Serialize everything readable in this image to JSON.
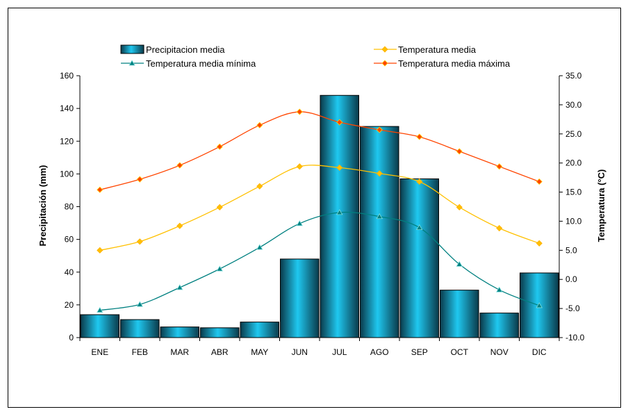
{
  "chart_data": {
    "type": "bar+line",
    "categories": [
      "ENE",
      "FEB",
      "MAR",
      "ABR",
      "MAY",
      "JUN",
      "JUL",
      "AGO",
      "SEP",
      "OCT",
      "NOV",
      "DIC"
    ],
    "bar_series": {
      "name": "Precipitacion media",
      "axis": "left",
      "values": [
        14,
        11,
        6.5,
        6,
        9.5,
        48,
        148,
        129,
        97,
        29,
        15,
        39.5
      ]
    },
    "line_series": [
      {
        "name": "Temperatura media",
        "axis": "right",
        "color": "#ffc000",
        "marker": "diamond",
        "values": [
          5.0,
          6.5,
          9.2,
          12.4,
          16.0,
          19.4,
          19.2,
          18.2,
          16.8,
          12.4,
          8.8,
          6.2
        ]
      },
      {
        "name": "Temperatura media mínima",
        "axis": "right",
        "color": "#008080",
        "marker": "triangle",
        "values": [
          -5.3,
          -4.3,
          -1.4,
          1.8,
          5.5,
          9.6,
          11.5,
          10.8,
          8.9,
          2.6,
          -1.8,
          -4.5
        ]
      },
      {
        "name": "Temperatura media máxima",
        "axis": "right",
        "color": "#ff4500",
        "marker": "diamond",
        "values": [
          15.4,
          17.2,
          19.6,
          22.8,
          26.5,
          28.8,
          27.0,
          25.7,
          24.5,
          22.0,
          19.4,
          16.8
        ]
      }
    ],
    "y_left": {
      "label": "Precipitación (mm)",
      "range": [
        0,
        160
      ],
      "ticks": [
        "0",
        "20",
        "40",
        "60",
        "80",
        "100",
        "120",
        "140",
        "160"
      ]
    },
    "y_right": {
      "label": "Temperatura (°C)",
      "range": [
        -10,
        35
      ],
      "ticks": [
        "-10.0",
        "-5.0",
        "0.0",
        "5.0",
        "10.0",
        "15.0",
        "20.0",
        "25.0",
        "30.0",
        "35.0"
      ]
    },
    "legend": {
      "placement": "top",
      "items": [
        "Precipitacion media",
        "Temperatura media",
        "Temperatura media mínima",
        "Temperatura media máxima"
      ]
    },
    "grid": false
  }
}
